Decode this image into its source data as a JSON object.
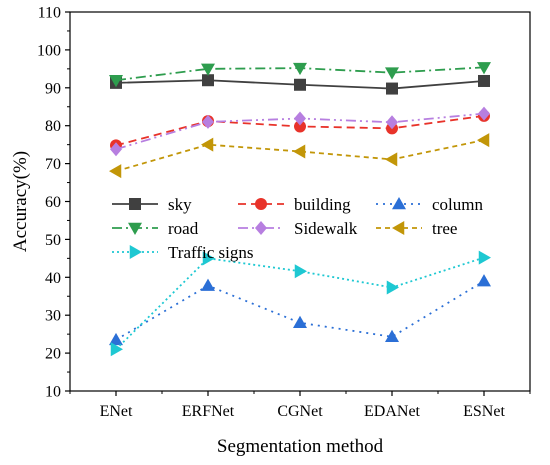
{
  "chart_data": {
    "type": "line",
    "title": "",
    "xlabel": "Segmentation method",
    "ylabel": "Accuracy(%)",
    "categories": [
      "ENet",
      "ERFNet",
      "CGNet",
      "EDANet",
      "ESNet"
    ],
    "ylim": [
      10,
      110
    ],
    "yticks": [
      10,
      20,
      30,
      40,
      50,
      60,
      70,
      80,
      90,
      100,
      110
    ],
    "grid": false,
    "legend_position": "center-left",
    "series": [
      {
        "name": "sky",
        "values": [
          91.3,
          92.0,
          90.8,
          89.8,
          91.8
        ],
        "color": "#404040",
        "marker": "square",
        "dash": "solid"
      },
      {
        "name": "building",
        "values": [
          74.8,
          81.2,
          79.8,
          79.3,
          82.6
        ],
        "color": "#e8332a",
        "marker": "circle",
        "dash": "dash"
      },
      {
        "name": "column",
        "values": [
          23.5,
          37.8,
          28.0,
          24.3,
          39.0
        ],
        "color": "#2b6fd6",
        "marker": "triangle-up",
        "dash": "dot"
      },
      {
        "name": "road",
        "values": [
          92.0,
          95.0,
          95.2,
          94.0,
          95.4
        ],
        "color": "#2e9d4e",
        "marker": "triangle-down",
        "dash": "dashdot"
      },
      {
        "name": "Sidewalk",
        "values": [
          73.8,
          81.0,
          81.9,
          80.9,
          83.2
        ],
        "color": "#b77fe0",
        "marker": "diamond",
        "dash": "dashdotdot"
      },
      {
        "name": "tree",
        "values": [
          68.0,
          75.0,
          73.2,
          71.1,
          76.2
        ],
        "color": "#c29608",
        "marker": "triangle-left",
        "dash": "shortdash"
      },
      {
        "name": "Traffic signs",
        "values": [
          21.0,
          45.0,
          41.6,
          37.3,
          45.2
        ],
        "color": "#1ec8d2",
        "marker": "triangle-right",
        "dash": "shortdot"
      }
    ]
  }
}
